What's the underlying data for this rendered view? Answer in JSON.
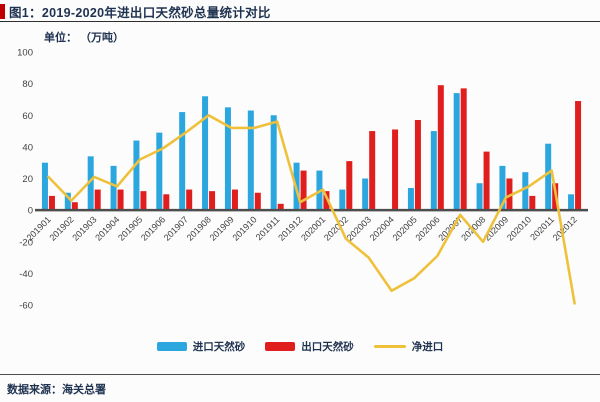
{
  "header": {
    "title": "图1：2019-2020年进出口天然砂总量统计对比",
    "unit": "单位： （万吨）"
  },
  "footer": {
    "source": "数据来源：海关总署"
  },
  "colors": {
    "import_bar": "#2ba6de",
    "export_bar": "#e01e1e",
    "net_line": "#efc13b",
    "title_text": "#1f3250",
    "axis_text": "#3f3f3f",
    "axis_line": "#4d4d4d",
    "accent_bar": "#c00000"
  },
  "chart_data": {
    "type": "bar",
    "title": "2019-2020年进出口天然砂总量统计对比",
    "xlabel": "",
    "ylabel": "万吨",
    "ylim": [
      -60,
      100
    ],
    "yticks": [
      100,
      80,
      60,
      40,
      20,
      0,
      -20,
      -40,
      -60
    ],
    "grid": false,
    "legend_position": "bottom",
    "categories": [
      "201901",
      "201902",
      "201903",
      "201904",
      "201905",
      "201906",
      "201907",
      "201908",
      "201909",
      "201910",
      "201911",
      "201912",
      "202001",
      "202002",
      "202003",
      "202004",
      "202005",
      "202006",
      "202007",
      "202008",
      "202009",
      "202010",
      "202011",
      "202012"
    ],
    "series": [
      {
        "key": "import",
        "name": "进口天然砂",
        "type": "bar",
        "color": "#2ba6de",
        "values": [
          30,
          11,
          34,
          28,
          44,
          49,
          62,
          72,
          65,
          63,
          60,
          30,
          25,
          13,
          20,
          0,
          14,
          50,
          74,
          17,
          28,
          24,
          42,
          10
        ]
      },
      {
        "key": "export",
        "name": "出口天然砂",
        "type": "bar",
        "color": "#e01e1e",
        "values": [
          9,
          5,
          13,
          13,
          12,
          10,
          13,
          12,
          13,
          11,
          4,
          25,
          12,
          31,
          50,
          51,
          57,
          79,
          77,
          37,
          20,
          9,
          17,
          69
        ]
      },
      {
        "key": "net_import",
        "name": "净进口",
        "type": "line",
        "color": "#efc13b",
        "values": [
          21,
          6,
          21,
          15,
          32,
          39,
          49,
          60,
          52,
          52,
          56,
          5,
          13,
          -18,
          -30,
          -51,
          -43,
          -29,
          -3,
          -20,
          8,
          15,
          25,
          -59
        ]
      }
    ]
  }
}
